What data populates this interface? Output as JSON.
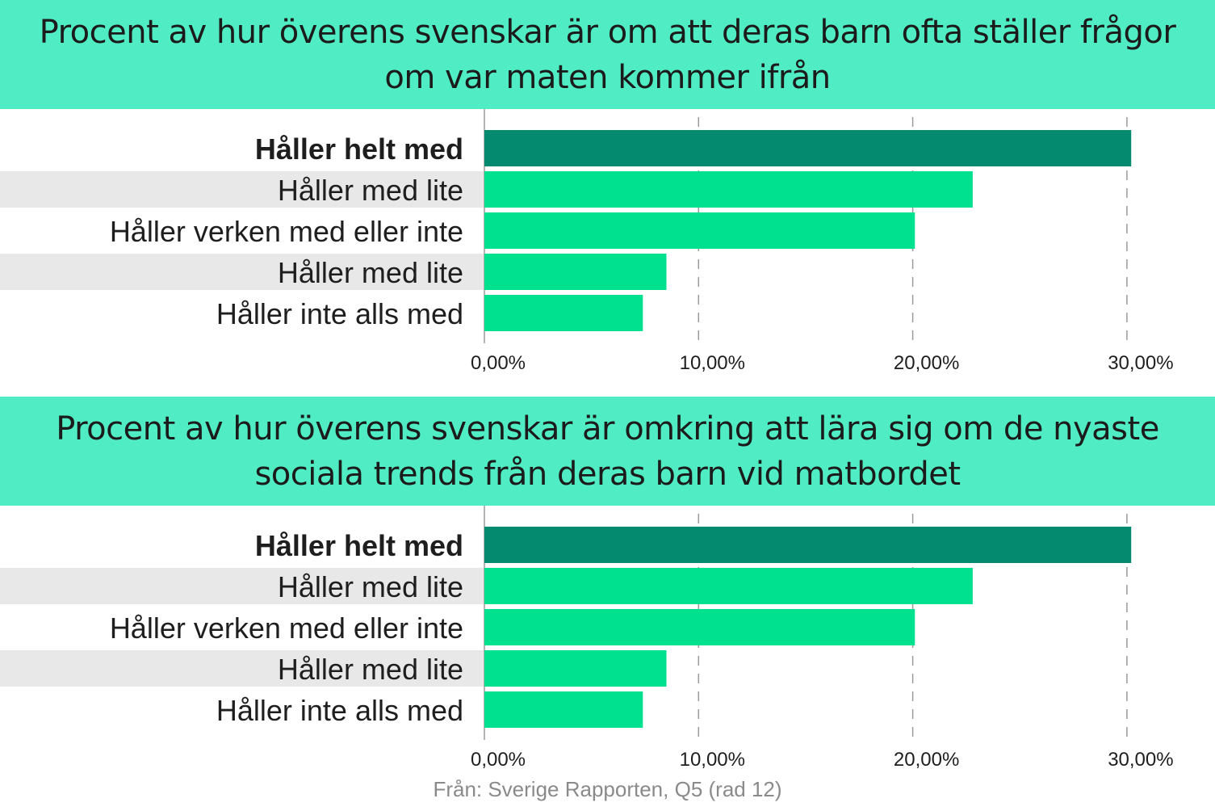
{
  "colors": {
    "header_bg": "#50ecc3",
    "bar_highlight": "#038a6f",
    "bar_default": "#00e190",
    "row_stripe": "#e8e8e8"
  },
  "chart_data": [
    {
      "type": "bar",
      "orientation": "horizontal",
      "title": "Procent av hur överens svenskar är om att deras barn ofta ställer frågor om var maten kommer ifrån",
      "categories": [
        "Håller helt med",
        "Håller med lite",
        "Håller verken med eller inte",
        "Håller med lite",
        "Håller inte alls med"
      ],
      "values": [
        30.2,
        22.8,
        20.1,
        8.5,
        7.4
      ],
      "highlight_index": 0,
      "xlim": [
        0,
        30
      ],
      "xticks": [
        0,
        10,
        20,
        30
      ],
      "xtick_labels": [
        "0,00%",
        "10,00%",
        "20,00%",
        "30,00%"
      ],
      "grid": "dashed-vertical"
    },
    {
      "type": "bar",
      "orientation": "horizontal",
      "title": "Procent av hur överens svenskar är omkring att lära sig om de nyaste sociala trends från deras barn vid matbordet",
      "categories": [
        "Håller helt med",
        "Håller med lite",
        "Håller verken med eller inte",
        "Håller med lite",
        "Håller inte alls med"
      ],
      "values": [
        30.2,
        22.8,
        20.1,
        8.5,
        7.4
      ],
      "highlight_index": 0,
      "xlim": [
        0,
        30
      ],
      "xticks": [
        0,
        10,
        20,
        30
      ],
      "xtick_labels": [
        "0,00%",
        "10,00%",
        "20,00%",
        "30,00%"
      ],
      "grid": "dashed-vertical"
    }
  ],
  "source": "Från: Sverige Rapporten, Q5 (rad 12)"
}
